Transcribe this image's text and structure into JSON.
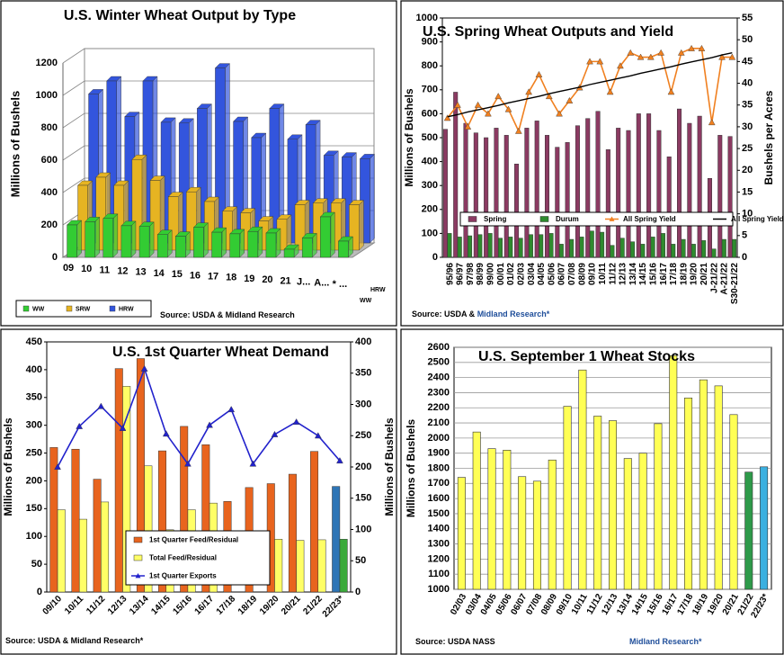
{
  "chart_data": [
    {
      "type": "bar3d",
      "title": "U.S. Winter Wheat Output by Type",
      "ylabel": "Millions of Bushels",
      "categories": [
        "09",
        "10",
        "11",
        "12",
        "13",
        "14",
        "15",
        "16",
        "17",
        "18",
        "19",
        "20",
        "21",
        "J...",
        "A...",
        "* ..."
      ],
      "series": [
        {
          "name": "WW",
          "color": "#33cc33",
          "values": [
            200,
            220,
            240,
            195,
            190,
            140,
            130,
            185,
            155,
            145,
            160,
            150,
            50,
            120,
            250,
            100
          ]
        },
        {
          "name": "SRW",
          "color": "#e6b422",
          "values": [
            400,
            450,
            400,
            560,
            430,
            330,
            360,
            300,
            240,
            230,
            180,
            190,
            280,
            290,
            290,
            280
          ]
        },
        {
          "name": "HRW",
          "color": "#3355dd",
          "values": [
            920,
            1000,
            780,
            1000,
            745,
            740,
            830,
            1080,
            750,
            650,
            830,
            640,
            730,
            540,
            530,
            520
          ]
        }
      ],
      "depth_labels": [
        "HRW",
        "WW"
      ],
      "ylim": [
        0,
        1200
      ],
      "yticks": [
        0,
        200,
        400,
        600,
        800,
        1000,
        1200
      ],
      "grid": true,
      "source": "Source: USDA & Midland Research"
    },
    {
      "type": "combo",
      "title": "U.S. Spring Wheat Outputs and Yield",
      "ylabel": "Millions of Bushels",
      "y2label": "Bushels per Acres",
      "categories": [
        "95/96",
        "96/97",
        "97/98",
        "98/99",
        "99/00",
        "00/01",
        "01/02",
        "02/03",
        "03/04",
        "04/05",
        "05/06",
        "06/07",
        "07/08",
        "08/09",
        "09/10",
        "10/11",
        "11/12",
        "12/13",
        "13/14",
        "14/15",
        "15/16",
        "16/17",
        "17/18",
        "18/19",
        "19/20",
        "20/21",
        "J-21/22",
        "A-21/22",
        "S30-21/22"
      ],
      "series": [
        {
          "name": "Spring",
          "kind": "bar",
          "color": "#8b3a62",
          "values": [
            535,
            690,
            560,
            520,
            500,
            540,
            510,
            390,
            540,
            570,
            510,
            460,
            480,
            550,
            580,
            610,
            450,
            540,
            530,
            600,
            600,
            530,
            420,
            620,
            560,
            590,
            330,
            510,
            505
          ]
        },
        {
          "name": "Durum",
          "kind": "bar",
          "color": "#2e8b2e",
          "values": [
            100,
            85,
            90,
            95,
            100,
            80,
            85,
            80,
            95,
            95,
            100,
            55,
            75,
            85,
            110,
            105,
            50,
            80,
            65,
            55,
            85,
            100,
            55,
            75,
            55,
            70,
            35,
            75,
            75
          ]
        },
        {
          "name": "All Spring Yield",
          "kind": "line",
          "axis": "y2",
          "marker": "triangle",
          "color": "#f08020",
          "values": [
            32,
            35,
            30,
            35,
            33,
            37,
            34,
            29,
            38,
            42,
            37,
            33,
            36,
            39,
            45,
            45,
            38,
            44,
            47,
            46,
            46,
            47,
            38,
            47,
            48,
            48,
            31,
            46,
            46
          ]
        },
        {
          "name": "All Spring Yield Trend",
          "kind": "line",
          "axis": "y2",
          "color": "#000000",
          "values": [
            32.3,
            32.8,
            33.4,
            33.9,
            34.4,
            34.9,
            35.5,
            36.0,
            36.5,
            37.0,
            37.6,
            38.1,
            38.6,
            39.1,
            39.7,
            40.2,
            40.7,
            41.2,
            41.7,
            42.3,
            42.8,
            43.3,
            43.8,
            44.4,
            44.9,
            45.4,
            45.9,
            46.5,
            47.0
          ]
        }
      ],
      "ylim": [
        0,
        1000
      ],
      "yticks": [
        0,
        100,
        200,
        300,
        400,
        500,
        600,
        700,
        800,
        900,
        1000
      ],
      "y2lim": [
        0,
        55
      ],
      "y2ticks": [
        0,
        5,
        10,
        15,
        20,
        25,
        30,
        35,
        40,
        45,
        50,
        55
      ],
      "grid": false,
      "source": "Source: USDA & ",
      "source_brand": "Midland Research*"
    },
    {
      "type": "combo",
      "title": "U.S. 1st Quarter Wheat Demand",
      "ylabel": "Millions  of Bushels",
      "y2label": "Millions  of Bushels",
      "categories": [
        "09/10",
        "10/11",
        "11/12",
        "12/13",
        "13/14",
        "14/15",
        "15/16",
        "16/17",
        "17/18",
        "18/19",
        "19/20",
        "20/21",
        "21/22",
        "22/23*"
      ],
      "series": [
        {
          "name": "1st Quarter Feed/Residual",
          "kind": "bar",
          "color": "#e8641e",
          "colors": [
            "#e8641e",
            "#e8641e",
            "#e8641e",
            "#e8641e",
            "#e8641e",
            "#e8641e",
            "#e8641e",
            "#e8641e",
            "#e8641e",
            "#e8641e",
            "#e8641e",
            "#e8641e",
            "#e8641e",
            "#2e75b6"
          ],
          "values": [
            260,
            257,
            203,
            402,
            420,
            254,
            298,
            265,
            163,
            188,
            195,
            212,
            253,
            190
          ]
        },
        {
          "name": "Total Feed/Residual",
          "kind": "bar",
          "color": "#ffff66",
          "colors": [
            "#ffff66",
            "#ffff66",
            "#ffff66",
            "#ffff66",
            "#ffff66",
            "#ffff66",
            "#ffff66",
            "#ffff66",
            "#ffff66",
            "#ffff66",
            "#ffff66",
            "#ffff66",
            "#ffff66",
            "#3aaa3a"
          ],
          "values": [
            148,
            131,
            162,
            370,
            227,
            112,
            148,
            160,
            null,
            null,
            95,
            93,
            94,
            95
          ]
        },
        {
          "name": "1st Quarter Exports",
          "kind": "line",
          "axis": "y2",
          "marker": "triangle",
          "color": "#2222cc",
          "values": [
            200,
            265,
            297,
            262,
            357,
            253,
            205,
            267,
            292,
            205,
            252,
            272,
            250,
            210
          ]
        }
      ],
      "ylim": [
        0,
        450
      ],
      "yticks": [
        0,
        50,
        100,
        150,
        200,
        250,
        300,
        350,
        400,
        450
      ],
      "y2lim": [
        0,
        400
      ],
      "y2ticks": [
        0,
        50,
        100,
        150,
        200,
        250,
        300,
        350,
        400
      ],
      "grid": false,
      "source": "Source: USDA & Midland Research*"
    },
    {
      "type": "bar",
      "title": "U.S. September 1 Wheat Stocks",
      "ylabel": "Millions of Bushels",
      "categories": [
        "02/03",
        "03/04",
        "04/05",
        "05/06",
        "06/07",
        "07/08",
        "08/09",
        "09/10",
        "10/11",
        "11/12",
        "12/13",
        "13/14",
        "14/15",
        "15/16",
        "16/17",
        "17/18",
        "18/19",
        "19/20",
        "20/21",
        "21/22",
        "22/23*"
      ],
      "values": [
        1740,
        2040,
        1930,
        1920,
        1745,
        1715,
        1855,
        2210,
        2450,
        2145,
        2115,
        1865,
        1900,
        2095,
        2545,
        2265,
        2385,
        2345,
        2155,
        1775,
        1810
      ],
      "colors": [
        "#ffff55",
        "#ffff55",
        "#ffff55",
        "#ffff55",
        "#ffff55",
        "#ffff55",
        "#ffff55",
        "#ffff55",
        "#ffff55",
        "#ffff55",
        "#ffff55",
        "#ffff55",
        "#ffff55",
        "#ffff55",
        "#ffff55",
        "#ffff55",
        "#ffff55",
        "#ffff55",
        "#ffff55",
        "#2e9a4a",
        "#3bb0e0"
      ],
      "ylim": [
        1000,
        2600
      ],
      "yticks": [
        1000,
        1100,
        1200,
        1300,
        1400,
        1500,
        1600,
        1700,
        1800,
        1900,
        2000,
        2100,
        2200,
        2300,
        2400,
        2500,
        2600
      ],
      "grid": true,
      "source": "Source: USDA NASS",
      "source_brand": "Midland Research*"
    }
  ]
}
